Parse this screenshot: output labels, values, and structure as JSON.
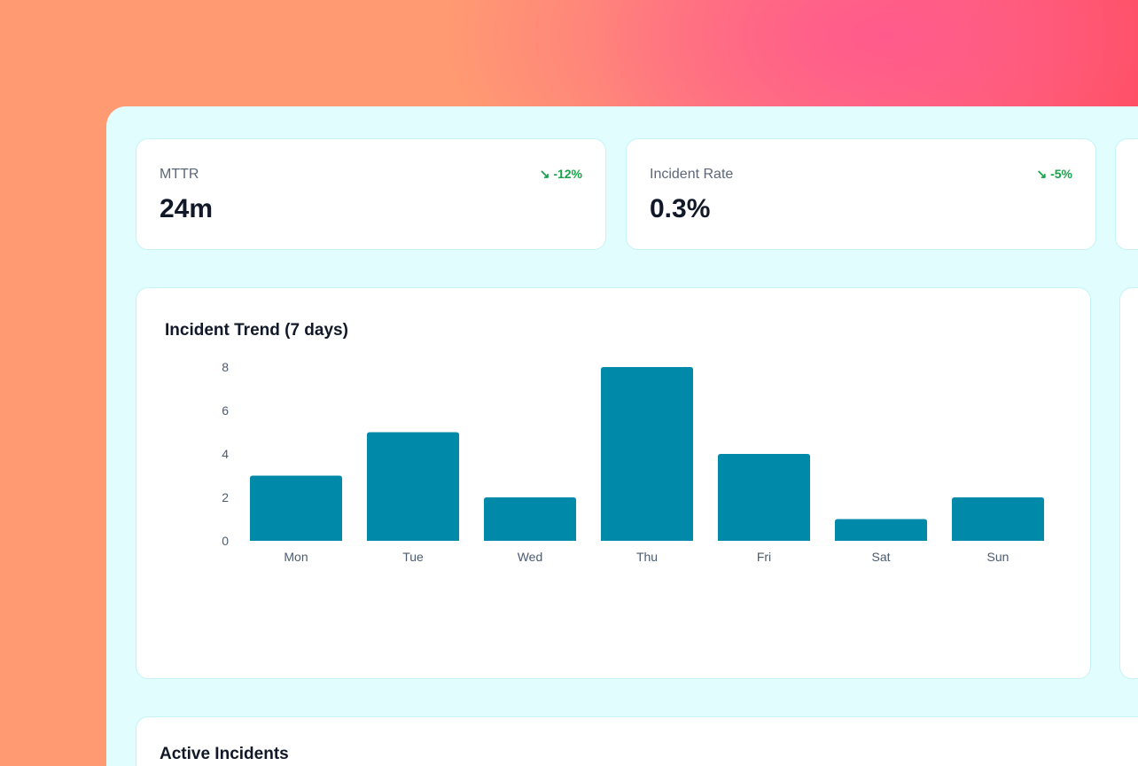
{
  "stats": [
    {
      "label": "MTTR",
      "value": "24m",
      "delta": "-12%",
      "trend_icon": "trending-down-icon"
    },
    {
      "label": "Incident Rate",
      "value": "0.3%",
      "delta": "-5%",
      "trend_icon": "trending-down-icon"
    }
  ],
  "colors": {
    "bar": "#0089a8",
    "positive": "#16a34a",
    "panel": "#e2fdfd"
  },
  "chart_data": {
    "type": "bar",
    "title": "Incident Trend (7 days)",
    "categories": [
      "Mon",
      "Tue",
      "Wed",
      "Thu",
      "Fri",
      "Sat",
      "Sun"
    ],
    "values": [
      3,
      5,
      2,
      8,
      4,
      1,
      2
    ],
    "yticks": [
      0,
      2,
      4,
      6,
      8
    ],
    "ylim": [
      0,
      8
    ],
    "grid": false
  },
  "incidents": {
    "title": "Active Incidents"
  }
}
